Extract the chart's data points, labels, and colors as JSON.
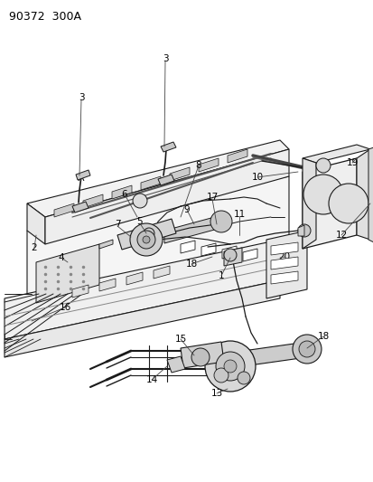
{
  "title": "90372  300A",
  "bg": "#ffffff",
  "lc": "#1a1a1a",
  "figsize": [
    4.14,
    5.33
  ],
  "dpi": 100
}
